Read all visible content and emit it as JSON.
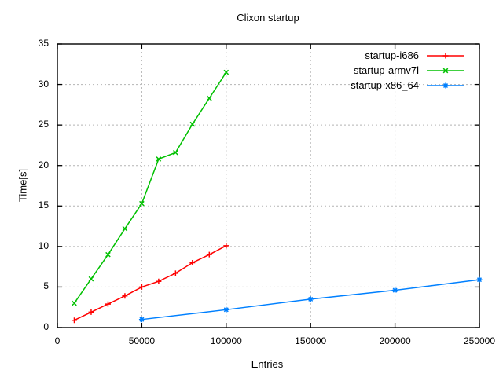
{
  "chart_data": {
    "type": "line",
    "title": "Clixon startup",
    "xlabel": "Entries",
    "ylabel": "Time[s]",
    "xlim": [
      0,
      250000
    ],
    "ylim": [
      0,
      35
    ],
    "x_ticks": [
      0,
      50000,
      100000,
      150000,
      200000,
      250000
    ],
    "x_tick_labels": [
      "0",
      "50000",
      "100000",
      "150000",
      "200000",
      "250000"
    ],
    "y_ticks": [
      0,
      5,
      10,
      15,
      20,
      25,
      30,
      35
    ],
    "y_tick_labels": [
      "0",
      "5",
      "10",
      "15",
      "20",
      "25",
      "30",
      "35"
    ],
    "grid": true,
    "legend_position": "top-right-inside",
    "series": [
      {
        "name": "startup-i686",
        "color": "#ff0000",
        "marker": "plus",
        "x": [
          10000,
          20000,
          30000,
          40000,
          50000,
          60000,
          70000,
          80000,
          90000,
          100000
        ],
        "y": [
          0.9,
          1.9,
          2.9,
          3.9,
          5.0,
          5.7,
          6.7,
          8.0,
          9.0,
          10.1
        ]
      },
      {
        "name": "startup-armv7l",
        "color": "#00c000",
        "marker": "cross",
        "x": [
          10000,
          20000,
          30000,
          40000,
          50000,
          60000,
          70000,
          80000,
          90000,
          100000
        ],
        "y": [
          3.0,
          6.0,
          9.0,
          12.2,
          15.3,
          20.8,
          21.6,
          25.1,
          28.3,
          31.5
        ]
      },
      {
        "name": "startup-x86_64",
        "color": "#0080ff",
        "marker": "asterisk",
        "x": [
          50000,
          100000,
          150000,
          200000,
          250000
        ],
        "y": [
          1.0,
          2.2,
          3.5,
          4.6,
          5.9
        ]
      }
    ],
    "colors": {
      "background": "#ffffff",
      "border": "#000000",
      "grid": "#b4b4b4",
      "text": "#000000"
    }
  }
}
